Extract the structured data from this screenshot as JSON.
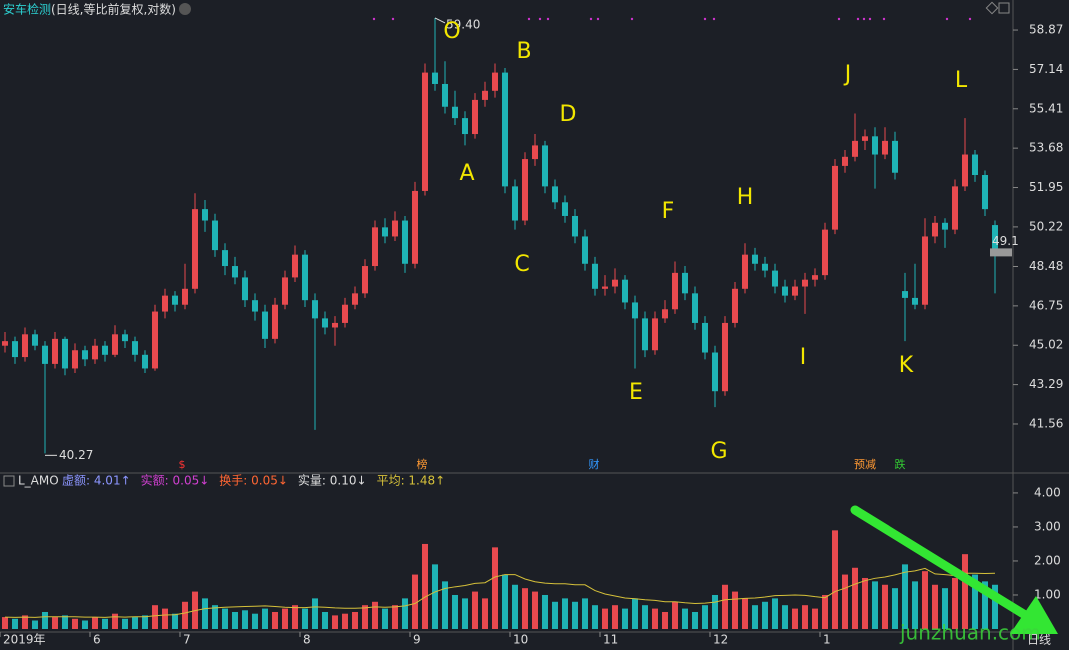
{
  "chart_data": {
    "type": "candlestick",
    "title": "安车检测",
    "subtitle": "(日线,等比前复权,对数)",
    "ylim": [
      39.45,
      60.19
    ],
    "yticks": [
      58.87,
      57.14,
      55.41,
      53.68,
      51.95,
      50.22,
      48.48,
      46.75,
      45.02,
      43.29,
      41.56
    ],
    "up_color": "#e84a4f",
    "down_color": "#1fb3b5",
    "categories": [
      "2019年",
      null,
      null,
      null,
      null,
      null,
      null,
      null,
      null,
      "6",
      null,
      null,
      null,
      null,
      null,
      null,
      null,
      null,
      "7",
      null,
      null,
      null,
      null,
      null,
      null,
      null,
      null,
      null,
      null,
      null,
      "8",
      null,
      null,
      null,
      null,
      null,
      null,
      null,
      null,
      null,
      null,
      "9",
      null,
      null,
      null,
      null,
      null,
      null,
      null,
      null,
      null,
      "10",
      null,
      null,
      null,
      null,
      null,
      null,
      null,
      null,
      "11",
      null,
      null,
      null,
      null,
      null,
      null,
      null,
      null,
      null,
      null,
      "12",
      null,
      null,
      null,
      null,
      null,
      null,
      null,
      null,
      null,
      null,
      "1",
      null,
      null,
      null,
      null,
      null,
      null,
      null,
      null,
      null,
      null,
      null,
      null,
      null,
      null,
      null,
      null,
      null
    ],
    "candles": [
      [
        45.0,
        45.6,
        44.7,
        45.2
      ],
      [
        45.2,
        45.4,
        44.2,
        44.5
      ],
      [
        44.5,
        45.8,
        44.3,
        45.5
      ],
      [
        45.5,
        45.7,
        44.8,
        45.0
      ],
      [
        45.0,
        45.2,
        40.27,
        44.2
      ],
      [
        44.2,
        45.6,
        44.0,
        45.3
      ],
      [
        45.3,
        45.4,
        43.7,
        44.0
      ],
      [
        44.0,
        45.1,
        43.8,
        44.8
      ],
      [
        44.8,
        45.0,
        44.1,
        44.4
      ],
      [
        44.4,
        45.3,
        44.2,
        45.0
      ],
      [
        45.0,
        45.2,
        44.3,
        44.6
      ],
      [
        44.6,
        45.9,
        44.5,
        45.5
      ],
      [
        45.5,
        45.7,
        44.9,
        45.2
      ],
      [
        45.2,
        45.4,
        44.3,
        44.6
      ],
      [
        44.6,
        44.8,
        43.8,
        44.0
      ],
      [
        44.0,
        46.8,
        43.9,
        46.5
      ],
      [
        46.5,
        47.5,
        46.2,
        47.2
      ],
      [
        47.2,
        47.4,
        46.5,
        46.8
      ],
      [
        46.8,
        48.6,
        46.6,
        47.5
      ],
      [
        47.5,
        51.7,
        47.3,
        51.0
      ],
      [
        51.0,
        51.4,
        50.0,
        50.5
      ],
      [
        50.5,
        50.8,
        48.9,
        49.2
      ],
      [
        49.2,
        49.5,
        48.1,
        48.5
      ],
      [
        48.5,
        48.9,
        47.7,
        48.0
      ],
      [
        48.0,
        48.3,
        46.7,
        47.0
      ],
      [
        47.0,
        47.3,
        46.1,
        46.5
      ],
      [
        46.5,
        46.8,
        44.9,
        45.3
      ],
      [
        45.3,
        47.1,
        45.1,
        46.8
      ],
      [
        46.8,
        48.3,
        46.6,
        48.0
      ],
      [
        48.0,
        49.4,
        47.8,
        49.0
      ],
      [
        49.0,
        49.2,
        46.7,
        47.0
      ],
      [
        47.0,
        47.3,
        41.3,
        46.2
      ],
      [
        46.2,
        46.5,
        45.5,
        45.8
      ],
      [
        45.8,
        46.3,
        45.0,
        46.0
      ],
      [
        46.0,
        47.1,
        45.8,
        46.8
      ],
      [
        46.8,
        47.6,
        46.6,
        47.3
      ],
      [
        47.3,
        48.8,
        47.1,
        48.5
      ],
      [
        48.5,
        50.5,
        48.3,
        50.2
      ],
      [
        50.2,
        50.6,
        49.5,
        49.8
      ],
      [
        49.8,
        50.9,
        49.6,
        50.5
      ],
      [
        50.5,
        50.7,
        48.2,
        48.6
      ],
      [
        48.6,
        52.2,
        48.4,
        51.8
      ],
      [
        51.8,
        57.4,
        51.6,
        57.0
      ],
      [
        57.0,
        59.4,
        56.2,
        56.5
      ],
      [
        56.5,
        57.5,
        55.2,
        55.5
      ],
      [
        55.5,
        56.2,
        54.7,
        55.0
      ],
      [
        55.0,
        55.3,
        53.8,
        54.3
      ],
      [
        54.3,
        56.1,
        54.1,
        55.8
      ],
      [
        55.8,
        56.6,
        55.5,
        56.2
      ],
      [
        56.2,
        57.4,
        55.9,
        57.0
      ],
      [
        57.0,
        57.2,
        51.7,
        52.0
      ],
      [
        52.0,
        52.3,
        50.1,
        50.5
      ],
      [
        50.5,
        53.5,
        50.3,
        53.2
      ],
      [
        53.2,
        54.3,
        52.9,
        53.8
      ],
      [
        53.8,
        54.0,
        51.7,
        52.0
      ],
      [
        52.0,
        52.3,
        51.0,
        51.3
      ],
      [
        51.3,
        51.6,
        50.4,
        50.7
      ],
      [
        50.7,
        51.0,
        49.5,
        49.8
      ],
      [
        49.8,
        50.1,
        48.3,
        48.6
      ],
      [
        48.6,
        48.9,
        47.2,
        47.5
      ],
      [
        47.5,
        48.1,
        47.2,
        47.6
      ],
      [
        47.6,
        48.4,
        47.3,
        47.9
      ],
      [
        47.9,
        48.1,
        46.6,
        46.9
      ],
      [
        46.9,
        47.2,
        44.0,
        46.2
      ],
      [
        46.2,
        46.5,
        44.5,
        44.8
      ],
      [
        44.8,
        46.5,
        44.6,
        46.2
      ],
      [
        46.2,
        47.0,
        46.0,
        46.6
      ],
      [
        46.6,
        48.7,
        46.4,
        48.2
      ],
      [
        48.2,
        48.5,
        47.0,
        47.3
      ],
      [
        47.3,
        47.6,
        45.7,
        46.0
      ],
      [
        46.0,
        46.3,
        44.4,
        44.7
      ],
      [
        44.7,
        45.0,
        42.3,
        43.0
      ],
      [
        43.0,
        46.3,
        42.8,
        46.0
      ],
      [
        46.0,
        47.8,
        45.8,
        47.5
      ],
      [
        47.5,
        49.5,
        47.3,
        49.0
      ],
      [
        49.0,
        49.3,
        48.3,
        48.6
      ],
      [
        48.6,
        48.9,
        48.0,
        48.3
      ],
      [
        48.3,
        48.6,
        47.3,
        47.6
      ],
      [
        47.6,
        47.9,
        46.9,
        47.2
      ],
      [
        47.2,
        47.9,
        47.0,
        47.6
      ],
      [
        47.6,
        48.2,
        46.4,
        47.9
      ],
      [
        47.9,
        48.4,
        47.6,
        48.1
      ],
      [
        48.1,
        50.4,
        47.9,
        50.1
      ],
      [
        50.1,
        53.2,
        49.9,
        52.9
      ],
      [
        52.9,
        53.6,
        52.6,
        53.3
      ],
      [
        53.3,
        55.2,
        53.1,
        54.0
      ],
      [
        54.0,
        54.5,
        53.6,
        54.2
      ],
      [
        54.2,
        54.6,
        51.9,
        53.4
      ],
      [
        53.4,
        54.6,
        53.2,
        54.0
      ],
      [
        54.0,
        54.4,
        52.3,
        52.6
      ],
      [
        47.4,
        48.2,
        45.2,
        47.1
      ],
      [
        47.1,
        48.6,
        46.6,
        46.8
      ],
      [
        46.8,
        50.6,
        46.6,
        49.8
      ],
      [
        49.8,
        50.7,
        49.5,
        50.4
      ],
      [
        50.4,
        50.6,
        49.3,
        50.1
      ],
      [
        50.1,
        52.3,
        49.9,
        52.0
      ],
      [
        52.0,
        55.0,
        51.8,
        53.4
      ],
      [
        53.4,
        53.6,
        52.2,
        52.5
      ],
      [
        52.5,
        52.7,
        50.7,
        51.0
      ],
      [
        50.3,
        50.5,
        47.3,
        49.1
      ]
    ],
    "extreme_labels": {
      "low": "40.27",
      "high": "59.40"
    },
    "last_price_label": "49.1",
    "annotations": [
      {
        "text": "O",
        "x": 44.7,
        "y": 58.78
      },
      {
        "text": "A",
        "x": 46.2,
        "y": 52.54
      },
      {
        "text": "B",
        "x": 51.9,
        "y": 57.9
      },
      {
        "text": "C",
        "x": 51.7,
        "y": 48.55
      },
      {
        "text": "D",
        "x": 56.3,
        "y": 55.14
      },
      {
        "text": "E",
        "x": 63.1,
        "y": 42.92
      },
      {
        "text": "F",
        "x": 66.3,
        "y": 50.87
      },
      {
        "text": "G",
        "x": 71.4,
        "y": 40.33
      },
      {
        "text": "H",
        "x": 74.0,
        "y": 51.49
      },
      {
        "text": "I",
        "x": 79.8,
        "y": 44.46
      },
      {
        "text": "J",
        "x": 84.3,
        "y": 56.89
      },
      {
        "text": "K",
        "x": 90.1,
        "y": 44.11
      },
      {
        "text": "L",
        "x": 95.6,
        "y": 56.63
      }
    ],
    "events": [
      {
        "text": "$",
        "x": 17.7,
        "color": "#ff3333"
      },
      {
        "text": "榜",
        "x": 41.7,
        "color": "#ff9933"
      },
      {
        "text": "财",
        "x": 58.9,
        "color": "#3399ff"
      },
      {
        "text": "预减",
        "x": 86.0,
        "color": "#ff9933"
      },
      {
        "text": "跌",
        "x": 89.5,
        "color": "#33cc33"
      }
    ],
    "volume": {
      "name": "L_AMO",
      "stats": [
        {
          "text": "虚额: 4.01↑",
          "color": "#8c96ff"
        },
        {
          "text": "实额: 0.05↓",
          "color": "#d040d0"
        },
        {
          "text": "换手: 0.05↓",
          "color": "#ff6633"
        },
        {
          "text": "实量: 0.10↓",
          "color": "#dddddd"
        },
        {
          "text": "平均: 1.48↑",
          "color": "#d6c13a"
        }
      ],
      "ylim": [
        0,
        4.38
      ],
      "yticks": [
        {
          "value": 4,
          "label": "4.00"
        },
        {
          "value": 3,
          "label": "3.00"
        },
        {
          "value": 2,
          "label": "2.00"
        },
        {
          "value": 1,
          "label": "1.00"
        }
      ],
      "values": [
        0.35,
        0.3,
        0.4,
        0.25,
        0.5,
        0.35,
        0.4,
        0.3,
        0.25,
        0.35,
        0.3,
        0.45,
        0.3,
        0.35,
        0.4,
        0.7,
        0.6,
        0.45,
        0.8,
        1.1,
        0.9,
        0.7,
        0.6,
        0.5,
        0.55,
        0.45,
        0.6,
        0.5,
        0.6,
        0.7,
        0.6,
        0.9,
        0.5,
        0.4,
        0.45,
        0.5,
        0.7,
        0.8,
        0.6,
        0.7,
        0.9,
        1.6,
        2.5,
        1.9,
        1.4,
        1.0,
        0.9,
        1.1,
        0.9,
        2.4,
        1.6,
        1.3,
        1.2,
        1.1,
        1.0,
        0.8,
        0.9,
        0.8,
        0.9,
        0.7,
        0.6,
        0.7,
        0.6,
        0.9,
        0.7,
        0.6,
        0.5,
        0.8,
        0.6,
        0.5,
        0.7,
        1.0,
        1.3,
        1.1,
        0.9,
        0.7,
        0.8,
        0.9,
        0.7,
        0.6,
        0.7,
        0.6,
        1.0,
        2.9,
        1.6,
        1.8,
        1.5,
        1.4,
        1.3,
        1.2,
        1.9,
        1.4,
        1.7,
        1.3,
        1.2,
        1.5,
        2.2,
        1.6,
        1.4,
        1.3
      ],
      "ma_color": "#d6c13a",
      "ma": [
        0.35,
        0.34,
        0.35,
        0.34,
        0.36,
        0.36,
        0.36,
        0.36,
        0.35,
        0.35,
        0.34,
        0.36,
        0.35,
        0.36,
        0.36,
        0.39,
        0.41,
        0.42,
        0.47,
        0.54,
        0.6,
        0.62,
        0.64,
        0.65,
        0.66,
        0.67,
        0.68,
        0.66,
        0.64,
        0.63,
        0.63,
        0.65,
        0.64,
        0.62,
        0.61,
        0.61,
        0.62,
        0.65,
        0.64,
        0.65,
        0.68,
        0.75,
        0.94,
        1.09,
        1.19,
        1.24,
        1.28,
        1.34,
        1.36,
        1.53,
        1.6,
        1.6,
        1.47,
        1.39,
        1.35,
        1.33,
        1.33,
        1.3,
        1.3,
        1.13,
        1.03,
        0.97,
        0.91,
        0.89,
        0.86,
        0.84,
        0.8,
        0.8,
        0.77,
        0.75,
        0.76,
        0.79,
        0.86,
        0.88,
        0.9,
        0.91,
        0.94,
        0.98,
        0.99,
        1.0,
        0.99,
        0.95,
        0.92,
        1.1,
        1.2,
        1.32,
        1.42,
        1.49,
        1.53,
        1.59,
        1.67,
        1.71,
        1.78,
        1.62,
        1.6,
        1.57,
        1.64,
        1.64,
        1.63,
        1.64
      ]
    },
    "period_label": "日线",
    "watermark": "junzhuan.com"
  }
}
